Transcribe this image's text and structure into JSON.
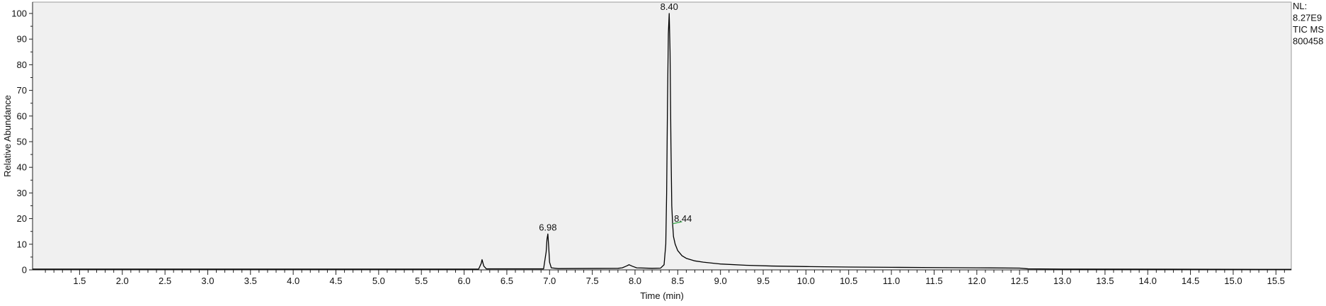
{
  "chart_data": {
    "type": "line",
    "xlabel": "Time (min)",
    "ylabel": "Relative Abundance",
    "xlim": [
      0.95,
      15.68
    ],
    "ylim": [
      0,
      100
    ],
    "x_ticks": [
      "1.5",
      "2.0",
      "2.5",
      "3.0",
      "3.5",
      "4.0",
      "4.5",
      "5.0",
      "5.5",
      "6.0",
      "6.5",
      "7.0",
      "7.5",
      "8.0",
      "8.5",
      "9.0",
      "9.5",
      "10.0",
      "10.5",
      "11.0",
      "11.5",
      "12.0",
      "12.5",
      "13.0",
      "13.5",
      "14.0",
      "14.5",
      "15.0",
      "15.5"
    ],
    "y_ticks": [
      "0",
      "10",
      "20",
      "30",
      "40",
      "50",
      "60",
      "70",
      "80",
      "90",
      "100"
    ],
    "info_lines": [
      "NL:",
      "8.27E9",
      "TIC  MS",
      "800458"
    ],
    "peak_labels": [
      {
        "label": "8.40",
        "x": 8.4,
        "y": 100
      },
      {
        "label": "6.98",
        "x": 6.98,
        "y": 14
      },
      {
        "label": "8.44",
        "x": 8.44,
        "y": 18
      }
    ],
    "series": [
      {
        "color": "#000000",
        "points": [
          [
            0.95,
            0.3
          ],
          [
            6.17,
            0.3
          ],
          [
            6.2,
            2.5
          ],
          [
            6.21,
            4.0
          ],
          [
            6.23,
            1.5
          ],
          [
            6.26,
            0.4
          ],
          [
            6.93,
            0.4
          ],
          [
            6.96,
            7.0
          ],
          [
            6.97,
            12.0
          ],
          [
            6.98,
            14.0
          ],
          [
            6.99,
            9.0
          ],
          [
            7.0,
            3.0
          ],
          [
            7.02,
            0.8
          ],
          [
            7.1,
            0.5
          ],
          [
            7.8,
            0.6
          ],
          [
            7.85,
            0.8
          ],
          [
            7.9,
            1.5
          ],
          [
            7.93,
            2.0
          ],
          [
            7.97,
            1.4
          ],
          [
            8.02,
            0.8
          ],
          [
            8.2,
            0.6
          ],
          [
            8.3,
            0.7
          ],
          [
            8.34,
            2.0
          ],
          [
            8.36,
            10.0
          ],
          [
            8.37,
            30.0
          ],
          [
            8.38,
            65.0
          ],
          [
            8.39,
            92.0
          ],
          [
            8.4,
            100.0
          ],
          [
            8.41,
            85.0
          ],
          [
            8.42,
            50.0
          ],
          [
            8.43,
            25.0
          ],
          [
            8.44,
            18.0
          ],
          [
            8.45,
            13.0
          ],
          [
            8.47,
            10.0
          ],
          [
            8.5,
            7.5
          ],
          [
            8.55,
            5.5
          ],
          [
            8.6,
            4.5
          ],
          [
            8.7,
            3.5
          ],
          [
            8.8,
            3.0
          ],
          [
            9.0,
            2.3
          ],
          [
            9.3,
            1.8
          ],
          [
            9.6,
            1.5
          ],
          [
            10.0,
            1.3
          ],
          [
            10.5,
            1.1
          ],
          [
            11.0,
            1.0
          ],
          [
            11.5,
            0.9
          ],
          [
            12.0,
            0.8
          ],
          [
            12.5,
            0.7
          ],
          [
            12.6,
            0.4
          ],
          [
            13.0,
            0.3
          ],
          [
            15.68,
            0.2
          ]
        ]
      }
    ],
    "baseline_marker": {
      "x": [
        8.44,
        8.55
      ],
      "y": [
        18,
        18.8
      ],
      "color": "#3aa84a"
    }
  }
}
